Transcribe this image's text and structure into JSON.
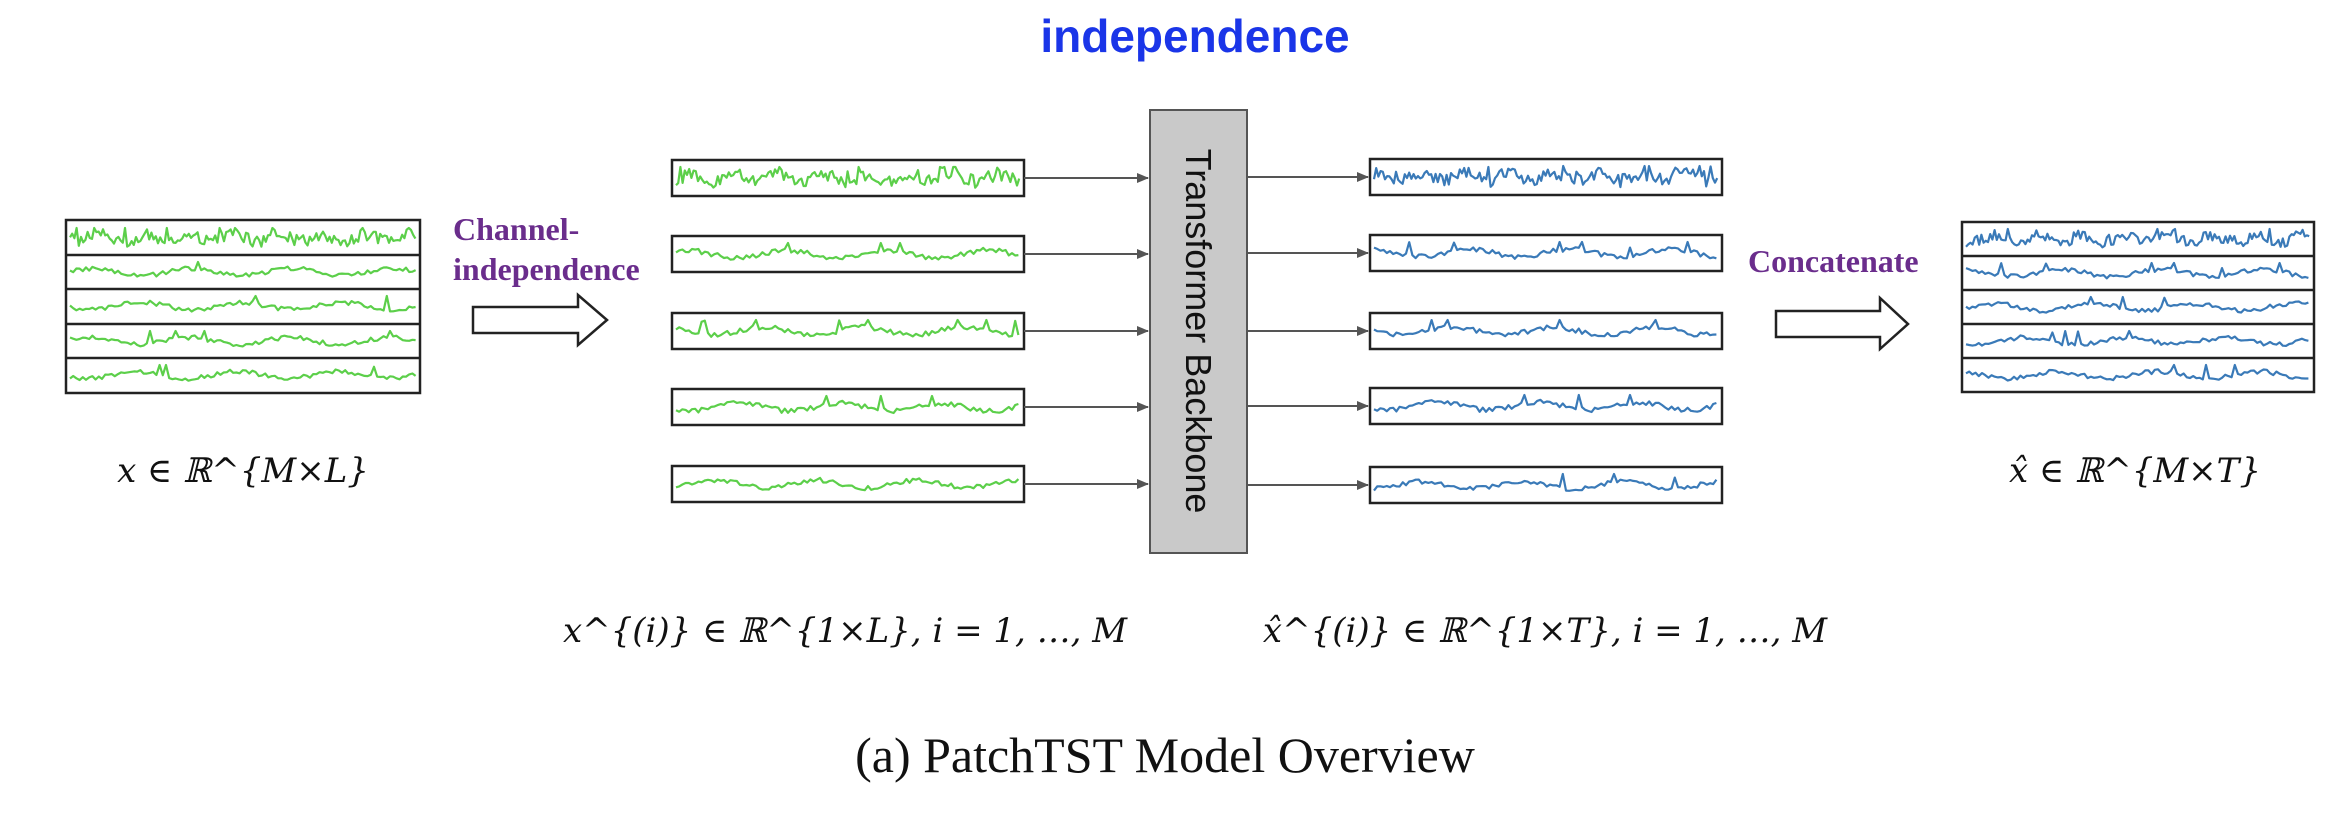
{
  "title_top": "independence",
  "channel_label_line1": "Channel-",
  "channel_label_line2": "independence",
  "concatenate_label": "Concatenate",
  "backbone_label": "Transformer Backbone",
  "input_math": "x ∈ ℝ^{M×L}",
  "output_math": "x̂ ∈ ℝ^{M×T}",
  "channel_input_math": "x^{(i)} ∈ ℝ^{1×L}, i = 1, …, M",
  "channel_output_math": "x̂^{(i)} ∈ ℝ^{1×T}, i = 1, …, M",
  "caption": "(a) PatchTST Model Overview",
  "colors": {
    "input_series": "#5ccf4a",
    "output_series": "#3a7ab8",
    "title_blue": "#1a35e8",
    "label_purple": "#6a2d8c",
    "backbone_fill": "#c9c9c9"
  }
}
